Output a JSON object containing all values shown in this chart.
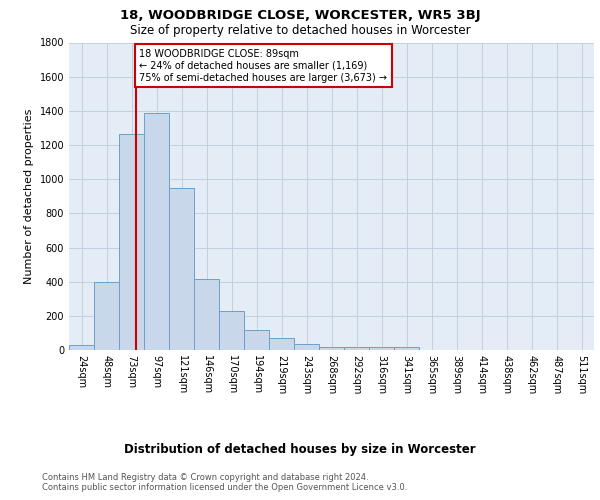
{
  "title": "18, WOODBRIDGE CLOSE, WORCESTER, WR5 3BJ",
  "subtitle": "Size of property relative to detached houses in Worcester",
  "xlabel": "Distribution of detached houses by size in Worcester",
  "ylabel": "Number of detached properties",
  "footnote1": "Contains HM Land Registry data © Crown copyright and database right 2024.",
  "footnote2": "Contains public sector information licensed under the Open Government Licence v3.0.",
  "bar_labels": [
    "24sqm",
    "48sqm",
    "73sqm",
    "97sqm",
    "121sqm",
    "146sqm",
    "170sqm",
    "194sqm",
    "219sqm",
    "243sqm",
    "268sqm",
    "292sqm",
    "316sqm",
    "341sqm",
    "365sqm",
    "389sqm",
    "414sqm",
    "438sqm",
    "462sqm",
    "487sqm",
    "511sqm"
  ],
  "bar_values": [
    30,
    400,
    1265,
    1390,
    950,
    415,
    230,
    115,
    70,
    38,
    18,
    15,
    18,
    15,
    0,
    0,
    0,
    0,
    0,
    0,
    0
  ],
  "bar_color": "#c8d8ea",
  "bar_edge_color": "#6aa0cc",
  "grid_color": "#c5cfe0",
  "background_color": "#e4ecf5",
  "vline_color": "#cc0000",
  "annotation_text": "18 WOODBRIDGE CLOSE: 89sqm\n← 24% of detached houses are smaller (1,169)\n75% of semi-detached houses are larger (3,673) →",
  "annotation_box_color": "#ffffff",
  "annotation_box_edgecolor": "#cc0000",
  "ylim": [
    0,
    1800
  ],
  "yticks": [
    0,
    200,
    400,
    600,
    800,
    1000,
    1200,
    1400,
    1600,
    1800
  ],
  "title_fontsize": 9.5,
  "subtitle_fontsize": 8.5,
  "ylabel_fontsize": 8,
  "xlabel_fontsize": 8.5,
  "tick_fontsize": 7,
  "annotation_fontsize": 7,
  "footnote_fontsize": 6
}
